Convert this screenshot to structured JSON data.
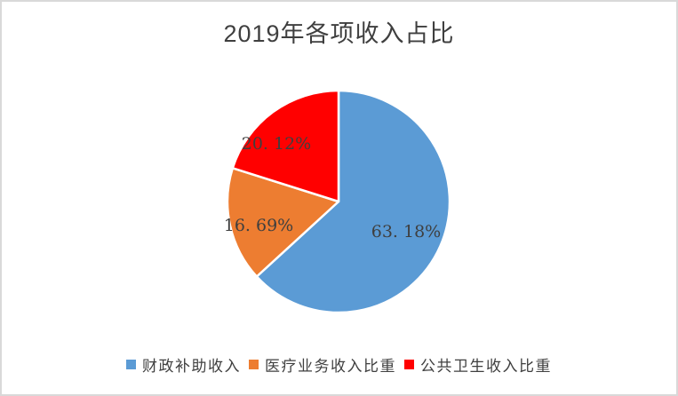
{
  "frame": {
    "border_color": "#d9d9d9",
    "background": "#ffffff"
  },
  "chart_data": {
    "type": "pie",
    "title": "2019年各项收入占比",
    "title_color": "#3f3f3f",
    "label_color": "#3f3f3f",
    "legend_text_color": "#3f3f3f",
    "legend_position": "bottom",
    "start_angle_deg": 0,
    "direction": "clockwise",
    "separator_color": "#ffffff",
    "slices": [
      {
        "label": "财政补助收入",
        "value": 63.18,
        "display": "63. 18%",
        "color": "#5b9bd5"
      },
      {
        "label": "医疗业务收入比重",
        "value": 16.69,
        "display": "16. 69%",
        "color": "#ed7d31"
      },
      {
        "label": "公共卫生收入比重",
        "value": 20.12,
        "display": "20. 12%",
        "color": "#ff0000"
      }
    ]
  }
}
